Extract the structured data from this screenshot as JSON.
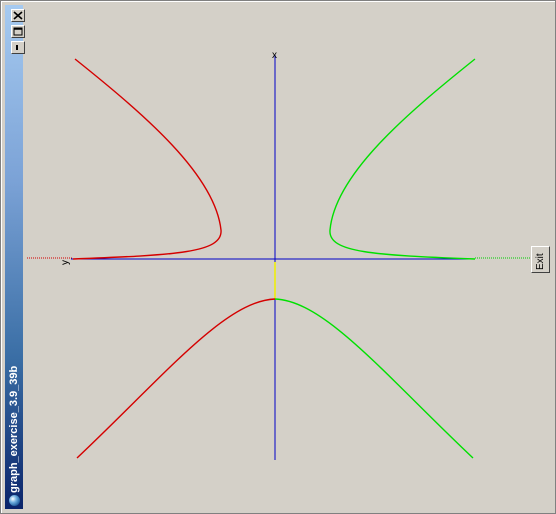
{
  "window": {
    "title": "graph_exercise_3.9_39b"
  },
  "controls": {
    "close_icon": "close-icon",
    "maximize_icon": "maximize-icon",
    "minimize_icon": "minimize-icon"
  },
  "buttons": {
    "exit_label": "Exit"
  },
  "axes": {
    "vertical_label": "x",
    "horizontal_label": "y"
  },
  "colors": {
    "background": "#d4d0c8",
    "axis": "#0000c8",
    "left_branches": "#d40000",
    "right_branches": "#00e000",
    "gap_segment": "#f0f000"
  }
}
